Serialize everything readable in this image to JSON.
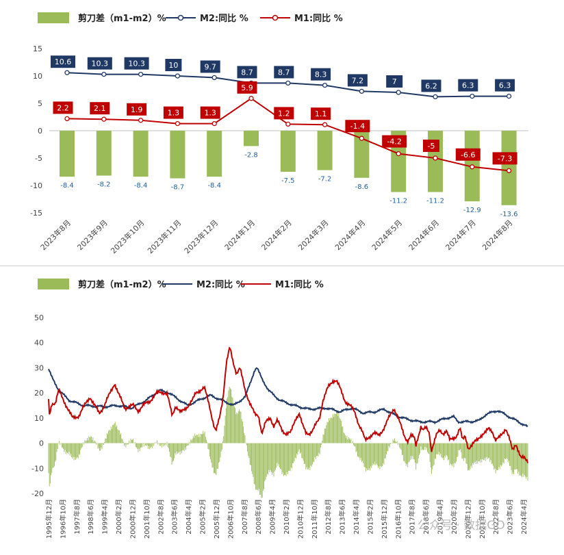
{
  "legend": {
    "bar_label": "剪刀差（m1-m2）%",
    "m2_label": "M2:同比 %",
    "m1_label": "M1:同比 %"
  },
  "colors": {
    "bar": "#9bbb59",
    "m2": "#1f3864",
    "m1": "#c00000"
  },
  "watermark": "公众号 · 数据GO",
  "chart_data": [
    {
      "type": "bar",
      "categories": [
        "2023年8月",
        "2023年9月",
        "2023年10月",
        "2023年11月",
        "2023年12月",
        "2024年1月",
        "2024年2月",
        "2024年3月",
        "2024年4月",
        "2024年5月",
        "2024年6月",
        "2024年7月",
        "2024年8月"
      ],
      "series": [
        {
          "name": "剪刀差（m1-m2）%",
          "type": "bar",
          "values": [
            -8.4,
            -8.2,
            -8.4,
            -8.7,
            -8.4,
            -2.8,
            -7.5,
            -7.2,
            -8.6,
            -11.2,
            -11.2,
            -12.9,
            -13.6
          ]
        },
        {
          "name": "M2:同比 %",
          "type": "line",
          "values": [
            10.6,
            10.3,
            10.3,
            10.0,
            9.7,
            8.7,
            8.7,
            8.3,
            7.2,
            7.0,
            6.2,
            6.3,
            6.3
          ]
        },
        {
          "name": "M1:同比 %",
          "type": "line",
          "values": [
            2.2,
            2.1,
            1.9,
            1.3,
            1.3,
            5.9,
            1.2,
            1.1,
            -1.4,
            -4.2,
            -5.0,
            -6.6,
            -7.3
          ]
        }
      ],
      "yticks": [
        15,
        10,
        5,
        0,
        -5,
        -10,
        -15
      ],
      "ylim": [
        -15,
        15
      ],
      "legend_position": "top-left",
      "grid": false
    },
    {
      "type": "line",
      "x_tick_labels": [
        "1995年12月",
        "1996年10月",
        "1997年8月",
        "1998年6月",
        "1999年4月",
        "2000年2月",
        "2000年12月",
        "2001年10月",
        "2002年8月",
        "2003年6月",
        "2004年4月",
        "2005年2月",
        "2005年12月",
        "2006年10月",
        "2007年8月",
        "2008年6月",
        "2009年4月",
        "2010年2月",
        "2010年12月",
        "2011年10月",
        "2012年8月",
        "2013年6月",
        "2014年4月",
        "2015年2月",
        "2015年12月",
        "2016年10月",
        "2017年8月",
        "2018年6月",
        "2019年4月",
        "2020年2月",
        "2020年12月",
        "2021年10月",
        "2022年8月",
        "2023年6月",
        "2024年4月"
      ],
      "x_start": "1995年12月",
      "x_end": "2024年8月",
      "series_anchors": {
        "m2": [
          [
            0,
            29.5
          ],
          [
            3,
            26
          ],
          [
            9,
            21
          ],
          [
            18,
            17
          ],
          [
            30,
            15
          ],
          [
            48,
            14.5
          ],
          [
            60,
            15
          ],
          [
            72,
            14
          ],
          [
            84,
            17
          ],
          [
            96,
            21
          ],
          [
            104,
            20
          ],
          [
            120,
            15
          ],
          [
            134,
            18
          ],
          [
            140,
            19
          ],
          [
            150,
            17
          ],
          [
            160,
            15
          ],
          [
            170,
            18.5
          ],
          [
            178,
            29
          ],
          [
            180,
            30
          ],
          [
            184,
            26
          ],
          [
            190,
            21
          ],
          [
            200,
            17
          ],
          [
            212,
            15
          ],
          [
            225,
            13.5
          ],
          [
            240,
            14
          ],
          [
            252,
            12.5
          ],
          [
            262,
            14
          ],
          [
            272,
            12
          ],
          [
            282,
            12.5
          ],
          [
            290,
            13.5
          ],
          [
            300,
            11
          ],
          [
            310,
            9.5
          ],
          [
            320,
            8.5
          ],
          [
            334,
            8.5
          ],
          [
            344,
            10
          ],
          [
            350,
            10.5
          ],
          [
            354,
            8.5
          ],
          [
            364,
            8.5
          ],
          [
            372,
            9
          ],
          [
            378,
            11.5
          ],
          [
            388,
            13
          ],
          [
            394,
            11.5
          ],
          [
            402,
            9.5
          ],
          [
            408,
            8
          ],
          [
            414,
            6.5
          ]
        ],
        "m1": [
          [
            0,
            17
          ],
          [
            1,
            11
          ],
          [
            4,
            16
          ],
          [
            8,
            16
          ],
          [
            12,
            21
          ],
          [
            18,
            17
          ],
          [
            28,
            10
          ],
          [
            36,
            11
          ],
          [
            45,
            16.5
          ],
          [
            49,
            18.5
          ],
          [
            54,
            15
          ],
          [
            60,
            12
          ],
          [
            66,
            15
          ],
          [
            70,
            18
          ],
          [
            74,
            21
          ],
          [
            78,
            24
          ],
          [
            82,
            20
          ],
          [
            90,
            14
          ],
          [
            100,
            15
          ],
          [
            106,
            13
          ],
          [
            112,
            15
          ],
          [
            120,
            17
          ],
          [
            128,
            20
          ],
          [
            134,
            20.5
          ],
          [
            140,
            19.5
          ],
          [
            146,
            11
          ],
          [
            150,
            15
          ],
          [
            156,
            12
          ],
          [
            162,
            14
          ],
          [
            170,
            17
          ],
          [
            174,
            20
          ],
          [
            178,
            21
          ],
          [
            184,
            22
          ],
          [
            190,
            15
          ],
          [
            194,
            9
          ],
          [
            196,
            6
          ],
          [
            198,
            5
          ],
          [
            202,
            10
          ],
          [
            206,
            18
          ],
          [
            210,
            32
          ],
          [
            214,
            38
          ],
          [
            218,
            32
          ],
          [
            222,
            28
          ],
          [
            226,
            30
          ],
          [
            232,
            21
          ],
          [
            238,
            16
          ],
          [
            244,
            11
          ],
          [
            248,
            11
          ],
          [
            252,
            4
          ],
          [
            256,
            8
          ],
          [
            262,
            10
          ],
          [
            266,
            7
          ],
          [
            270,
            9
          ],
          [
            276,
            5
          ],
          [
            280,
            4
          ],
          [
            286,
            4
          ],
          [
            292,
            10
          ],
          [
            296,
            12
          ],
          [
            300,
            7
          ],
          [
            304,
            4
          ],
          [
            308,
            4
          ],
          [
            312,
            5
          ],
          [
            320,
            10
          ],
          [
            324,
            17
          ],
          [
            330,
            22
          ],
          [
            336,
            25
          ],
          [
            340,
            25
          ],
          [
            344,
            22
          ],
          [
            350,
            17
          ],
          [
            356,
            15
          ],
          [
            362,
            12
          ],
          [
            366,
            8
          ],
          [
            370,
            5
          ],
          [
            374,
            1
          ],
          [
            380,
            3
          ],
          [
            384,
            4
          ],
          [
            390,
            3
          ],
          [
            396,
            6
          ],
          [
            402,
            10
          ],
          [
            408,
            14
          ],
          [
            412,
            11
          ],
          [
            416,
            7
          ],
          [
            420,
            3
          ],
          [
            424,
            1
          ],
          [
            428,
            3
          ],
          [
            432,
            2
          ],
          [
            434,
            -1
          ],
          [
            436,
            2
          ],
          [
            440,
            7
          ],
          [
            442,
            5
          ],
          [
            446,
            6
          ],
          [
            450,
            4
          ],
          [
            452,
            -3
          ],
          [
            458,
            3
          ],
          [
            462,
            5
          ],
          [
            466,
            4
          ],
          [
            470,
            5
          ],
          [
            474,
            1
          ],
          [
            478,
            2
          ],
          [
            482,
            3
          ],
          [
            486,
            6
          ],
          [
            489,
            1
          ],
          [
            492,
            3
          ],
          [
            496,
            -2
          ],
          [
            500,
            -1
          ],
          [
            510,
            3
          ],
          [
            516,
            4
          ],
          [
            520,
            6
          ],
          [
            524,
            5
          ],
          [
            528,
            1
          ],
          [
            532,
            2
          ],
          [
            536,
            4
          ],
          [
            540,
            6
          ],
          [
            544,
            2
          ],
          [
            548,
            -3
          ],
          [
            552,
            0
          ],
          [
            556,
            -4
          ],
          [
            558,
            -6
          ],
          [
            562,
            -6
          ],
          [
            566,
            -7
          ]
        ]
      },
      "yticks": [
        50,
        40,
        30,
        20,
        10,
        0,
        -10,
        -20
      ],
      "ylim": [
        -20,
        50
      ],
      "legend_position": "top-left",
      "grid": false
    }
  ]
}
